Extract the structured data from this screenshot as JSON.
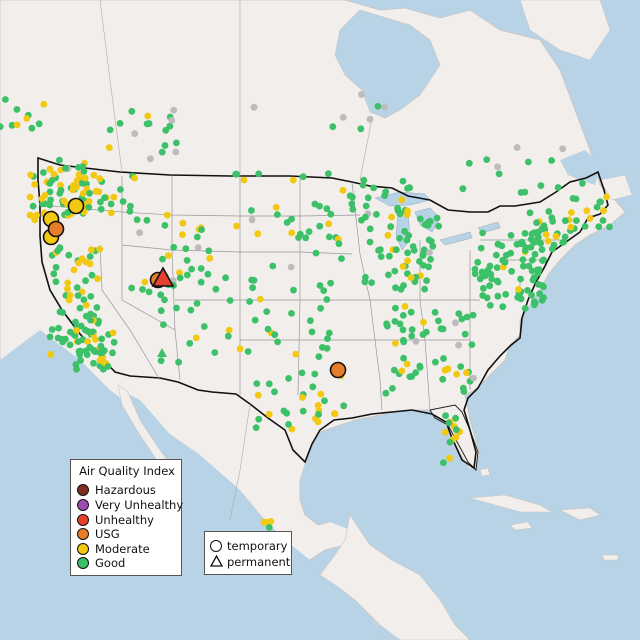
{
  "legend": {
    "title": "Air Quality Index",
    "categories": [
      {
        "label": "Hazardous",
        "color": "#7e2d20"
      },
      {
        "label": "Very Unhealthy",
        "color": "#9a4fb0"
      },
      {
        "label": "Unhealthy",
        "color": "#e8402e"
      },
      {
        "label": "USG",
        "color": "#e57d2a"
      },
      {
        "label": "Moderate",
        "color": "#f2c811"
      },
      {
        "label": "Good",
        "color": "#3cc068"
      }
    ]
  },
  "monitor_type_legend": {
    "items": [
      {
        "label": "temporary",
        "shape": "circle"
      },
      {
        "label": "permanent",
        "shape": "triangle"
      }
    ]
  },
  "colors": {
    "ocean": "#b9d3e6",
    "land": "#f1eeec",
    "no_data": "#bcbcbc"
  }
}
